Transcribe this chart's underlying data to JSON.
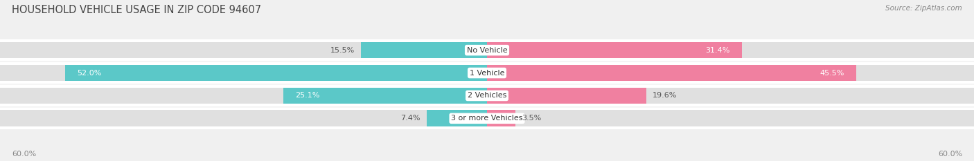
{
  "title": "HOUSEHOLD VEHICLE USAGE IN ZIP CODE 94607",
  "source": "Source: ZipAtlas.com",
  "categories": [
    "No Vehicle",
    "1 Vehicle",
    "2 Vehicles",
    "3 or more Vehicles"
  ],
  "owner_values": [
    15.5,
    52.0,
    25.1,
    7.4
  ],
  "renter_values": [
    31.4,
    45.5,
    19.6,
    3.5
  ],
  "owner_color": "#5BC8C8",
  "renter_color": "#F080A0",
  "axis_max": 60.0,
  "axis_label_left": "60.0%",
  "axis_label_right": "60.0%",
  "title_fontsize": 10.5,
  "source_fontsize": 7.5,
  "label_fontsize": 8,
  "category_fontsize": 8,
  "bar_height": 0.72,
  "figure_bg": "#f0f0f0",
  "row_bg": "#ffffff",
  "bar_bg_color": "#e0e0e0",
  "title_color": "#444444",
  "label_color": "#555555",
  "source_color": "#888888",
  "owner_label_white_threshold": 20,
  "renter_label_white_threshold": 20
}
